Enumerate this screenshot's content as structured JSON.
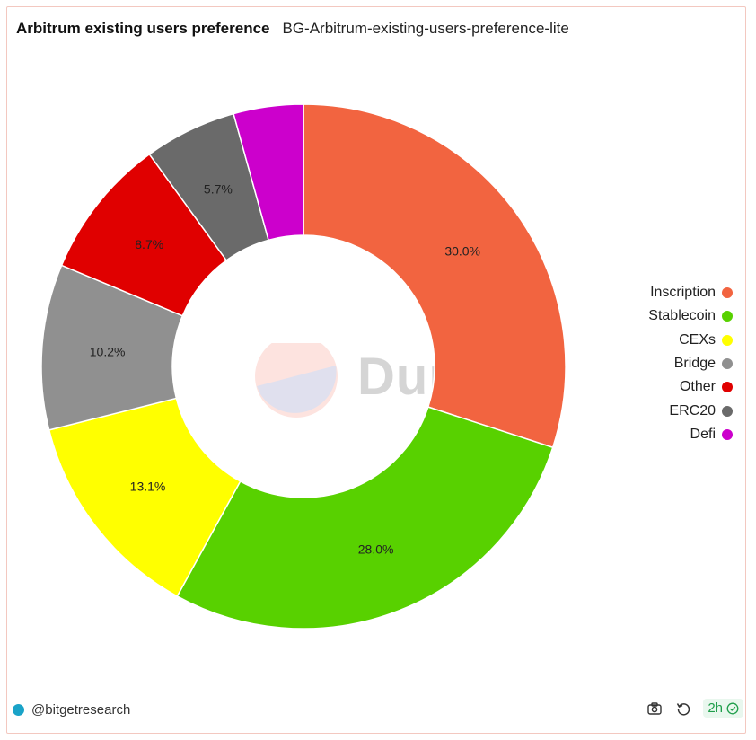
{
  "header": {
    "title": "Arbitrum existing users preference",
    "subtitle": "BG-Arbitrum-existing-users-preference-lite"
  },
  "chart_data": {
    "type": "pie",
    "donut": true,
    "start_angle": "12 o'clock, clockwise",
    "categories": [
      "Inscription",
      "Stablecoin",
      "CEXs",
      "Bridge",
      "Other",
      "ERC20",
      "Defi"
    ],
    "values": [
      30.0,
      28.0,
      13.1,
      10.2,
      8.7,
      5.7,
      4.3
    ],
    "labels": [
      "30.0%",
      "28.0%",
      "13.1%",
      "10.2%",
      "8.7%",
      "5.7%",
      ""
    ],
    "colors": [
      "#f26440",
      "#58d100",
      "#ffff00",
      "#909090",
      "#e00000",
      "#6a6a6a",
      "#cc00cc"
    ],
    "legend_position": "right"
  },
  "watermark": {
    "text": "Dune"
  },
  "footer": {
    "author": "@bitgetresearch",
    "refresh_age": "2h",
    "icons": [
      "camera-icon",
      "refresh-icon",
      "check-circle-icon"
    ]
  }
}
